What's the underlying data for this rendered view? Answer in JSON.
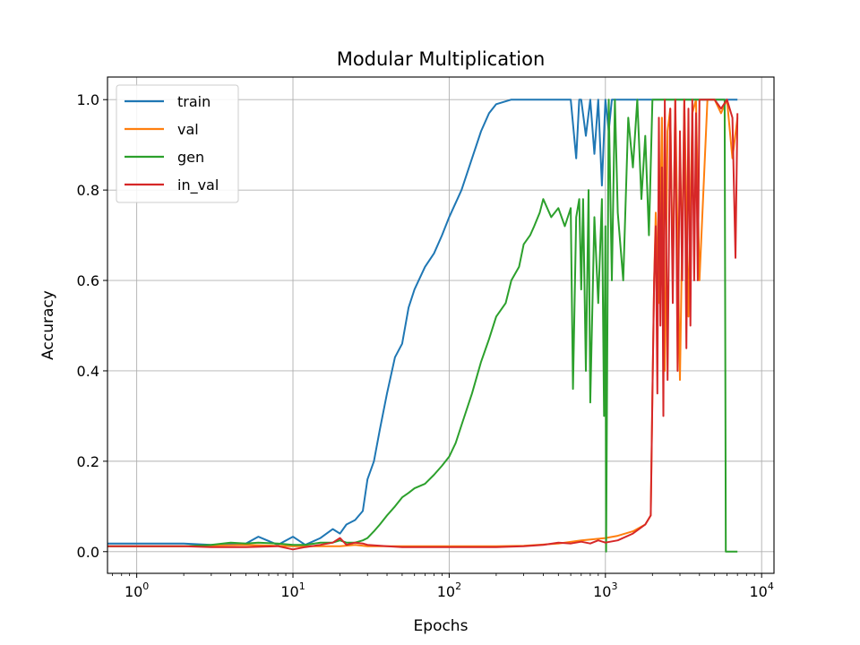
{
  "chart_data": {
    "type": "line",
    "title": "Modular Multiplication",
    "xlabel": "Epochs",
    "ylabel": "Accuracy",
    "xscale": "log",
    "xlim": [
      0.65,
      12000
    ],
    "ylim": [
      -0.048,
      1.05
    ],
    "grid": true,
    "legend_position": "top-left",
    "xticks": [
      {
        "value": 1,
        "base": "10",
        "exp": "0"
      },
      {
        "value": 10,
        "base": "10",
        "exp": "1"
      },
      {
        "value": 100,
        "base": "10",
        "exp": "2"
      },
      {
        "value": 1000,
        "base": "10",
        "exp": "3"
      },
      {
        "value": 10000,
        "base": "10",
        "exp": "4"
      }
    ],
    "yticks": [
      {
        "value": 0.0,
        "label": "0.0"
      },
      {
        "value": 0.2,
        "label": "0.2"
      },
      {
        "value": 0.4,
        "label": "0.4"
      },
      {
        "value": 0.6,
        "label": "0.6"
      },
      {
        "value": 0.8,
        "label": "0.8"
      },
      {
        "value": 1.0,
        "label": "1.0"
      }
    ],
    "series": [
      {
        "name": "train",
        "color": "#1f77b4",
        "x": [
          0.65,
          1,
          2,
          3,
          5,
          6,
          8,
          10,
          12,
          15,
          18,
          20,
          22,
          25,
          28,
          30,
          33,
          36,
          40,
          45,
          50,
          55,
          60,
          70,
          80,
          90,
          100,
          120,
          140,
          160,
          180,
          200,
          250,
          300,
          400,
          500,
          600,
          650,
          680,
          700,
          750,
          800,
          850,
          900,
          950,
          1000,
          1050,
          1100,
          1200,
          1500,
          2000,
          3000,
          4000,
          5000,
          6000,
          7000
        ],
        "y": [
          0.018,
          0.018,
          0.018,
          0.015,
          0.018,
          0.033,
          0.015,
          0.033,
          0.015,
          0.03,
          0.05,
          0.04,
          0.06,
          0.07,
          0.09,
          0.16,
          0.2,
          0.27,
          0.35,
          0.43,
          0.46,
          0.54,
          0.58,
          0.63,
          0.66,
          0.7,
          0.74,
          0.8,
          0.87,
          0.93,
          0.97,
          0.99,
          1.0,
          1.0,
          1.0,
          1.0,
          1.0,
          0.87,
          1.0,
          1.0,
          0.92,
          1.0,
          0.88,
          1.0,
          0.81,
          1.0,
          0.93,
          1.0,
          1.0,
          1.0,
          1.0,
          1.0,
          1.0,
          1.0,
          1.0,
          1.0
        ]
      },
      {
        "name": "val",
        "color": "#ff7f0e",
        "x": [
          0.65,
          1,
          2,
          5,
          10,
          15,
          20,
          25,
          30,
          50,
          100,
          200,
          300,
          500,
          700,
          1000,
          1200,
          1500,
          1800,
          1950,
          2000,
          2050,
          2100,
          2200,
          2300,
          2400,
          2500,
          2600,
          2700,
          2800,
          3000,
          3200,
          3400,
          3600,
          3800,
          4000,
          4500,
          5000,
          5500,
          6000,
          6500,
          7000
        ],
        "y": [
          0.012,
          0.012,
          0.012,
          0.015,
          0.012,
          0.012,
          0.012,
          0.015,
          0.012,
          0.012,
          0.012,
          0.012,
          0.013,
          0.018,
          0.025,
          0.03,
          0.035,
          0.045,
          0.06,
          0.08,
          0.35,
          0.6,
          0.75,
          0.55,
          0.96,
          0.4,
          0.93,
          0.98,
          0.6,
          1.0,
          0.38,
          1.0,
          0.52,
          0.97,
          1.0,
          0.6,
          1.0,
          1.0,
          0.97,
          1.0,
          0.87,
          0.96
        ]
      },
      {
        "name": "gen",
        "color": "#2ca02c",
        "x": [
          0.65,
          1,
          2,
          3,
          4,
          5,
          6,
          8,
          10,
          12,
          15,
          18,
          20,
          22,
          25,
          28,
          30,
          33,
          36,
          40,
          45,
          50,
          55,
          60,
          70,
          80,
          90,
          100,
          110,
          120,
          140,
          160,
          180,
          200,
          230,
          250,
          280,
          300,
          330,
          350,
          380,
          400,
          450,
          500,
          550,
          600,
          620,
          650,
          680,
          700,
          720,
          750,
          780,
          800,
          850,
          900,
          950,
          980,
          1000,
          1010,
          1050,
          1100,
          1150,
          1200,
          1300,
          1400,
          1500,
          1600,
          1700,
          1800,
          1900,
          2000,
          2200,
          2500,
          3000,
          3500,
          4000,
          4500,
          5000,
          5500,
          5800,
          5900,
          6000,
          6500,
          7000
        ],
        "y": [
          0.012,
          0.012,
          0.012,
          0.015,
          0.02,
          0.018,
          0.02,
          0.018,
          0.015,
          0.015,
          0.02,
          0.02,
          0.025,
          0.02,
          0.02,
          0.025,
          0.03,
          0.045,
          0.06,
          0.08,
          0.1,
          0.12,
          0.13,
          0.14,
          0.15,
          0.17,
          0.19,
          0.21,
          0.24,
          0.28,
          0.35,
          0.42,
          0.47,
          0.52,
          0.55,
          0.6,
          0.63,
          0.68,
          0.7,
          0.72,
          0.75,
          0.78,
          0.74,
          0.76,
          0.72,
          0.76,
          0.36,
          0.74,
          0.78,
          0.58,
          0.78,
          0.4,
          0.8,
          0.33,
          0.74,
          0.55,
          0.78,
          0.3,
          0.72,
          0.0,
          1.0,
          0.6,
          1.0,
          0.75,
          0.6,
          0.96,
          0.85,
          1.0,
          0.78,
          0.92,
          0.7,
          1.0,
          1.0,
          1.0,
          1.0,
          1.0,
          1.0,
          1.0,
          1.0,
          1.0,
          1.0,
          0.0,
          0.0,
          0.0,
          0.0
        ]
      },
      {
        "name": "in_val",
        "color": "#d62728",
        "x": [
          0.65,
          1,
          2,
          3,
          5,
          8,
          10,
          12,
          15,
          18,
          20,
          22,
          25,
          28,
          30,
          40,
          50,
          100,
          200,
          300,
          400,
          500,
          600,
          700,
          800,
          900,
          1000,
          1200,
          1500,
          1800,
          1950,
          2000,
          2050,
          2100,
          2150,
          2200,
          2250,
          2300,
          2350,
          2400,
          2450,
          2500,
          2600,
          2700,
          2800,
          2900,
          3000,
          3100,
          3200,
          3300,
          3400,
          3500,
          3600,
          3700,
          3800,
          3900,
          4000,
          4500,
          5000,
          5500,
          6000,
          6500,
          6800,
          7000
        ],
        "y": [
          0.012,
          0.012,
          0.012,
          0.01,
          0.01,
          0.012,
          0.005,
          0.01,
          0.015,
          0.02,
          0.03,
          0.015,
          0.02,
          0.018,
          0.015,
          0.012,
          0.01,
          0.01,
          0.01,
          0.012,
          0.015,
          0.02,
          0.018,
          0.022,
          0.018,
          0.025,
          0.02,
          0.025,
          0.04,
          0.06,
          0.08,
          0.35,
          0.6,
          0.72,
          0.35,
          0.96,
          0.5,
          0.85,
          0.3,
          1.0,
          0.7,
          0.38,
          0.98,
          0.55,
          1.0,
          0.4,
          0.93,
          0.6,
          1.0,
          0.45,
          0.98,
          0.5,
          1.0,
          0.6,
          0.97,
          0.6,
          1.0,
          1.0,
          1.0,
          0.98,
          1.0,
          0.96,
          0.65,
          0.97
        ]
      }
    ]
  }
}
